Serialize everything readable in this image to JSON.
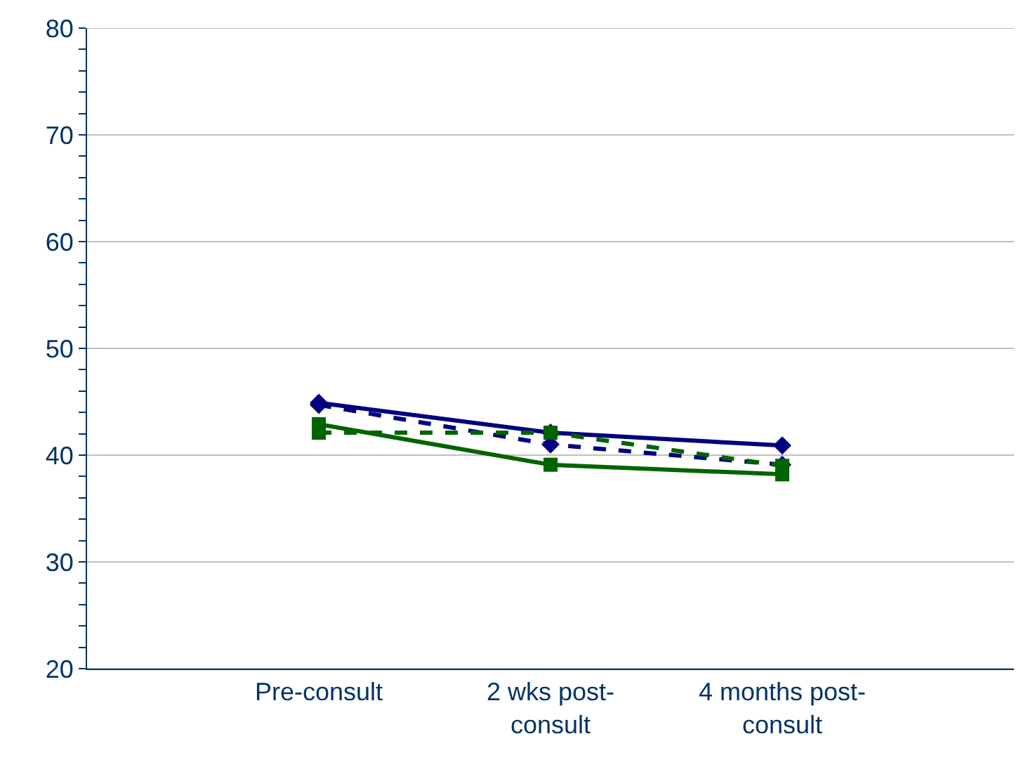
{
  "chart_data": {
    "type": "line",
    "categories": [
      null,
      "Pre-consult",
      "2 wks post-consult",
      "4 months post-consult",
      null
    ],
    "ylim": [
      20,
      80
    ],
    "yticks": [
      20,
      {
        "value": 22,
        "label": null
      },
      {
        "value": 24,
        "label": null
      },
      {
        "value": 26,
        "label": null
      },
      {
        "value": 28,
        "label": null
      },
      30,
      {
        "value": 32,
        "label": null
      },
      {
        "value": 34,
        "label": null
      },
      {
        "value": 36,
        "label": null
      },
      {
        "value": 38,
        "label": null
      },
      40,
      {
        "value": 42,
        "label": null
      },
      {
        "value": 44,
        "label": null
      },
      {
        "value": 46,
        "label": null
      },
      {
        "value": 48,
        "label": null
      },
      50,
      {
        "value": 52,
        "label": null
      },
      {
        "value": 54,
        "label": null
      },
      {
        "value": 56,
        "label": null
      },
      {
        "value": 58,
        "label": null
      },
      60,
      {
        "value": 62,
        "label": null
      },
      {
        "value": 64,
        "label": null
      },
      {
        "value": 66,
        "label": null
      },
      {
        "value": 68,
        "label": null
      },
      70,
      {
        "value": 72,
        "label": null
      },
      {
        "value": 74,
        "label": null
      },
      {
        "value": 76,
        "label": null
      },
      {
        "value": 78,
        "label": null
      },
      80
    ],
    "grid": "y",
    "series": [
      {
        "color": "#000080",
        "marker": "diamond",
        "line_style": "solid",
        "values": [
          null,
          44.9,
          42.1,
          40.9,
          null
        ]
      },
      {
        "color": "#000080",
        "marker": "diamond",
        "line_style": "dashed",
        "values": [
          null,
          44.7,
          41,
          39.1,
          null
        ]
      },
      {
        "color": "#006400",
        "marker": "square",
        "line_style": "solid",
        "values": [
          null,
          42.9,
          39.1,
          38.2,
          null
        ]
      },
      {
        "color": "#006400",
        "marker": "square",
        "line_style": "dashed",
        "values": [
          null,
          42.1,
          42.1,
          39,
          null
        ]
      }
    ]
  }
}
